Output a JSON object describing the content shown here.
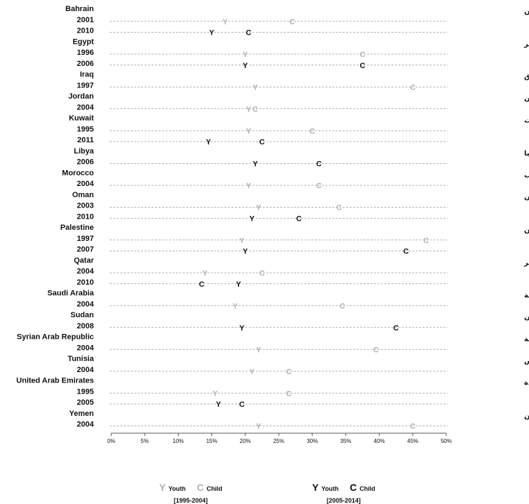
{
  "chart_data": {
    "type": "scatter",
    "xlim": [
      0,
      50
    ],
    "x_ticks": [
      "0%",
      "5%",
      "10%",
      "15%",
      "20%",
      "25%",
      "30%",
      "35%",
      "40%",
      "45%",
      "50%"
    ],
    "series_styles": {
      "early_youth": {
        "symbol": "Y",
        "color": "#b0b0b0"
      },
      "early_child": {
        "symbol": "C",
        "color": "#b0b0b0"
      },
      "late_youth": {
        "symbol": "Y",
        "color": "#111111"
      },
      "late_child": {
        "symbol": "C",
        "color": "#111111"
      }
    },
    "countries": [
      {
        "name": "Bahrain",
        "arabic": "البحرين",
        "surveys": [
          {
            "year": "2001",
            "period": "early",
            "youth": 17,
            "child": 27
          },
          {
            "year": "2010",
            "period": "late",
            "youth": 15,
            "child": 20.5
          }
        ]
      },
      {
        "name": "Egypt",
        "arabic": "مصر",
        "surveys": [
          {
            "year": "1996",
            "period": "early",
            "youth": 20,
            "child": 37.5
          },
          {
            "year": "2006",
            "period": "late",
            "youth": 20,
            "child": 37.5
          }
        ]
      },
      {
        "name": "Iraq",
        "arabic": "العراق",
        "surveys": [
          {
            "year": "1997",
            "period": "early",
            "youth": 21.5,
            "child": 45
          }
        ]
      },
      {
        "name": "Jordan",
        "arabic": "الاردن",
        "surveys": [
          {
            "year": "2004",
            "period": "early",
            "youth": 20.5,
            "child": 21.5
          }
        ]
      },
      {
        "name": "Kuwait",
        "arabic": "الكويت",
        "surveys": [
          {
            "year": "1995",
            "period": "early",
            "youth": 20.5,
            "child": 30
          },
          {
            "year": "2011",
            "period": "late",
            "youth": 14.5,
            "child": 22.5
          }
        ]
      },
      {
        "name": "Libya",
        "arabic": "ليبيا",
        "surveys": [
          {
            "year": "2006",
            "period": "late",
            "youth": 21.5,
            "child": 31
          }
        ]
      },
      {
        "name": "Morocco",
        "arabic": "المغرب",
        "surveys": [
          {
            "year": "2004",
            "period": "early",
            "youth": 20.5,
            "child": 31
          }
        ]
      },
      {
        "name": "Oman",
        "arabic": "عمان",
        "surveys": [
          {
            "year": "2003",
            "period": "early",
            "youth": 22,
            "child": 34
          },
          {
            "year": "2010",
            "period": "late",
            "youth": 21,
            "child": 28
          }
        ]
      },
      {
        "name": "Palestine",
        "arabic": "فلسطين",
        "surveys": [
          {
            "year": "1997",
            "period": "early",
            "youth": 19.5,
            "child": 47
          },
          {
            "year": "2007",
            "period": "late",
            "youth": 20,
            "child": 44
          }
        ]
      },
      {
        "name": "Qatar",
        "arabic": "قطر",
        "surveys": [
          {
            "year": "2004",
            "period": "early",
            "youth": 14,
            "child": 22.5
          },
          {
            "year": "2010",
            "period": "late",
            "youth": 19,
            "child": 13.5
          }
        ]
      },
      {
        "name": "Saudi Arabia",
        "arabic": "المملكة العربية السعودية",
        "surveys": [
          {
            "year": "2004",
            "period": "early",
            "youth": 18.5,
            "child": 34.5
          }
        ]
      },
      {
        "name": "Sudan",
        "arabic": "السودان",
        "surveys": [
          {
            "year": "2008",
            "period": "late",
            "youth": 19.5,
            "child": 42.5
          }
        ]
      },
      {
        "name": "Syrian Arab Republic",
        "arabic": "الجمهورية العربية السورية",
        "surveys": [
          {
            "year": "2004",
            "period": "early",
            "youth": 22,
            "child": 39.5
          }
        ]
      },
      {
        "name": "Tunisia",
        "arabic": "تونس",
        "surveys": [
          {
            "year": "2004",
            "period": "early",
            "youth": 21,
            "child": 26.5
          }
        ]
      },
      {
        "name": "United Arab Emirates",
        "arabic": "الامارات العربية المتحدة",
        "surveys": [
          {
            "year": "1995",
            "period": "early",
            "youth": 15.5,
            "child": 26.5
          },
          {
            "year": "2005",
            "period": "late",
            "youth": 16,
            "child": 19.5
          }
        ]
      },
      {
        "name": "Yemen",
        "arabic": "اليمن",
        "surveys": [
          {
            "year": "2004",
            "period": "early",
            "youth": 22,
            "child": 45
          }
        ]
      }
    ]
  },
  "legend": {
    "early": {
      "youth_symbol": "Y",
      "youth_label": "Youth",
      "child_symbol": "C",
      "child_label": "Child",
      "period": "[1995-2004]"
    },
    "late": {
      "youth_symbol": "Y",
      "youth_label": "Youth",
      "child_symbol": "C",
      "child_label": "Child",
      "period": "[2005-2014]"
    }
  }
}
